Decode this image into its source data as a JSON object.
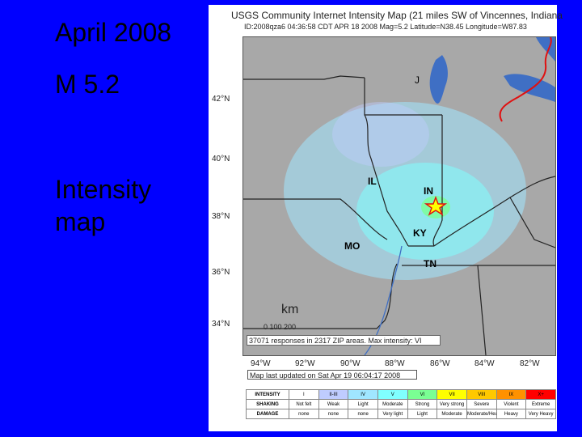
{
  "slide": {
    "line1": "April 2008",
    "line2": "M 5.2",
    "line3": "Intensity map",
    "background": "#0000ff"
  },
  "map": {
    "title": "USGS Community Internet Intensity Map (21 miles SW of Vincennes, Indiana",
    "subtitle": "ID:2008qza6 04:36:58 CDT APR 18 2008 Mag=5.2 Latitude=N38.45 Longitude=W87.83",
    "lat_labels": [
      "42°N",
      "40°N",
      "38°N",
      "36°N",
      "34°N"
    ],
    "lon_labels": [
      "94°W",
      "92°W",
      "90°W",
      "88°W",
      "86°W",
      "84°W",
      "82°W"
    ],
    "states": [
      "IL",
      "IN",
      "KY",
      "MO",
      "TN"
    ],
    "lake_label": "J",
    "scale_unit": "km",
    "scale_ticks": "0   100   200",
    "responses": "37071 responses in 2317 ZIP areas. Max intensity: VI",
    "updated": "Map last updated on Sat Apr 19 06:04:17 2008"
  },
  "legend": {
    "rows": [
      {
        "head": "INTENSITY",
        "cells": [
          "I",
          "II-III",
          "IV",
          "V",
          "VI",
          "VII",
          "VIII",
          "IX",
          "X+"
        ]
      },
      {
        "head": "SHAKING",
        "cells": [
          "Not felt",
          "Weak",
          "Light",
          "Moderate",
          "Strong",
          "Very strong",
          "Severe",
          "Violent",
          "Extreme"
        ]
      },
      {
        "head": "DAMAGE",
        "cells": [
          "none",
          "none",
          "none",
          "Very light",
          "Light",
          "Moderate",
          "Moderate/Heavy",
          "Heavy",
          "Very Heavy"
        ]
      }
    ],
    "colors": [
      "#ffffff",
      "#bfccff",
      "#a0e6ff",
      "#80ffff",
      "#7aff93",
      "#ffff00",
      "#ffc800",
      "#ff9100",
      "#ff0000"
    ]
  }
}
